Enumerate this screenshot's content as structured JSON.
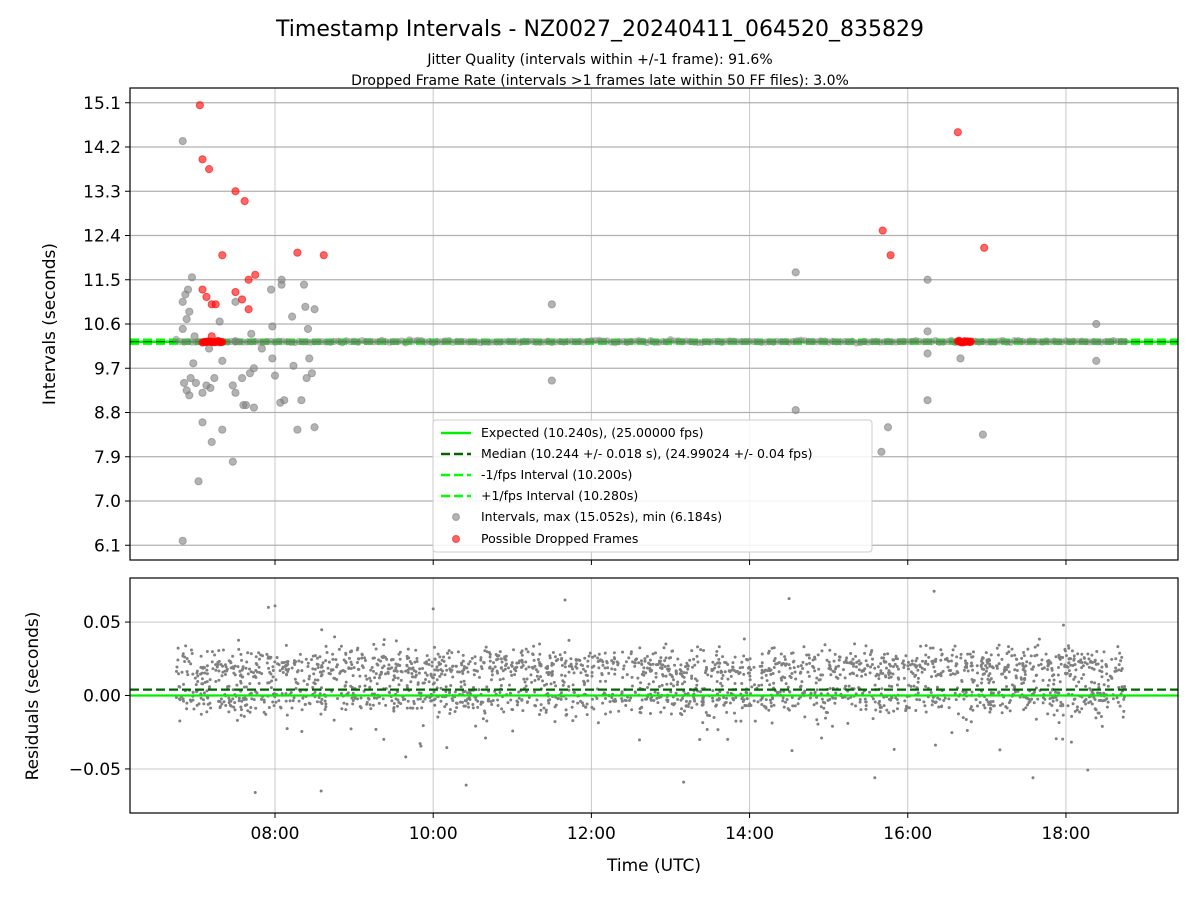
{
  "figure": {
    "title": "Timestamp Intervals - NZ0027_20240411_064520_835829",
    "subtitle_line1": "Jitter Quality (intervals within +/-1 frame): 91.6%",
    "subtitle_line2": "Dropped Frame Rate (intervals >1 frames late within 50 FF files): 3.0%"
  },
  "colors": {
    "expected": "#00ee00",
    "median": "#006400",
    "fps_band": "#00ff00",
    "intervals": "#808080",
    "dropped": "#ff0000",
    "residuals": "#808080",
    "grid": "#b0b0b0"
  },
  "chart_data": [
    {
      "type": "scatter",
      "ylabel": "Intervals (seconds)",
      "xlim": [
        "06:10",
        "19:25"
      ],
      "ylim": [
        5.8,
        15.4
      ],
      "xticks": [
        "08:00",
        "10:00",
        "12:00",
        "14:00",
        "16:00",
        "18:00"
      ],
      "yticks": [
        "6.1",
        "7.0",
        "7.9",
        "8.8",
        "9.7",
        "10.6",
        "11.5",
        "12.4",
        "13.3",
        "14.2",
        "15.1"
      ],
      "grid": true,
      "legend_position": "lower-center",
      "lines": [
        {
          "name": "Expected (10.240s), (25.00000 fps)",
          "y": 10.24,
          "style": "solid"
        },
        {
          "name": "Median (10.244 +/- 0.018 s), (24.99024 +/- 0.04 fps)",
          "y": 10.244,
          "style": "dashed"
        },
        {
          "name": "-1/fps Interval (10.200s)",
          "y": 10.2,
          "style": "dashed"
        },
        {
          "name": "+1/fps Interval (10.280s)",
          "y": 10.28,
          "style": "dashed"
        }
      ],
      "series": [
        {
          "name": "Intervals, max (15.052s), min (6.184s)",
          "points": [
            [
              "06:50",
              14.32
            ],
            [
              "06:50",
              11.05
            ],
            [
              "06:52",
              11.2
            ],
            [
              "06:54",
              11.3
            ],
            [
              "06:50",
              10.5
            ],
            [
              "06:53",
              10.7
            ],
            [
              "06:55",
              10.85
            ],
            [
              "06:57",
              11.55
            ],
            [
              "06:59",
              10.35
            ],
            [
              "06:51",
              9.4
            ],
            [
              "06:53",
              9.25
            ],
            [
              "06:55",
              9.15
            ],
            [
              "06:56",
              9.5
            ],
            [
              "06:58",
              9.8
            ],
            [
              "07:00",
              9.4
            ],
            [
              "07:02",
              7.4
            ],
            [
              "07:05",
              9.2
            ],
            [
              "07:05",
              8.6
            ],
            [
              "07:08",
              9.35
            ],
            [
              "07:10",
              10.1
            ],
            [
              "07:11",
              9.3
            ],
            [
              "07:14",
              9.5
            ],
            [
              "07:12",
              8.2
            ],
            [
              "07:18",
              10.65
            ],
            [
              "07:20",
              8.45
            ],
            [
              "07:20",
              9.85
            ],
            [
              "07:28",
              7.8
            ],
            [
              "07:28",
              9.35
            ],
            [
              "07:30",
              9.2
            ],
            [
              "07:30",
              10.25
            ],
            [
              "07:30",
              11.05
            ],
            [
              "07:35",
              9.5
            ],
            [
              "07:36",
              8.95
            ],
            [
              "07:38",
              8.95
            ],
            [
              "07:41",
              9.6
            ],
            [
              "07:42",
              10.4
            ],
            [
              "07:44",
              9.7
            ],
            [
              "07:44",
              8.9
            ],
            [
              "07:50",
              10.1
            ],
            [
              "07:57",
              11.3
            ],
            [
              "07:58",
              10.55
            ],
            [
              "07:58",
              9.9
            ],
            [
              "08:00",
              9.55
            ],
            [
              "08:05",
              11.5
            ],
            [
              "08:05",
              11.4
            ],
            [
              "08:04",
              9.0
            ],
            [
              "08:07",
              9.05
            ],
            [
              "08:13",
              10.75
            ],
            [
              "08:14",
              9.75
            ],
            [
              "08:17",
              8.45
            ],
            [
              "08:20",
              9.05
            ],
            [
              "08:22",
              11.4
            ],
            [
              "08:23",
              10.95
            ],
            [
              "08:25",
              10.5
            ],
            [
              "08:24",
              9.5
            ],
            [
              "08:26",
              9.9
            ],
            [
              "08:28",
              9.6
            ],
            [
              "08:30",
              10.9
            ],
            [
              "08:30",
              8.5
            ],
            [
              "06:50",
              6.19
            ],
            [
              "11:30",
              11.0
            ],
            [
              "11:30",
              9.45
            ],
            [
              "14:35",
              11.65
            ],
            [
              "14:35",
              8.85
            ],
            [
              "15:40",
              8.0
            ],
            [
              "15:45",
              8.5
            ],
            [
              "16:15",
              11.5
            ],
            [
              "16:15",
              10.45
            ],
            [
              "16:15",
              10.0
            ],
            [
              "16:15",
              9.05
            ],
            [
              "16:40",
              9.9
            ],
            [
              "16:57",
              8.35
            ],
            [
              "18:23",
              10.6
            ],
            [
              "18:23",
              9.85
            ]
          ]
        },
        {
          "name": "Possible Dropped Frames",
          "points": [
            [
              "07:03",
              15.05
            ],
            [
              "07:05",
              13.95
            ],
            [
              "07:10",
              13.75
            ],
            [
              "07:30",
              13.3
            ],
            [
              "07:37",
              13.1
            ],
            [
              "07:20",
              12.0
            ],
            [
              "07:05",
              11.3
            ],
            [
              "07:08",
              11.15
            ],
            [
              "07:12",
              11.0
            ],
            [
              "07:15",
              11.0
            ],
            [
              "07:30",
              11.25
            ],
            [
              "07:35",
              11.1
            ],
            [
              "07:40",
              10.9
            ],
            [
              "07:45",
              11.6
            ],
            [
              "07:40",
              11.5
            ],
            [
              "07:12",
              10.35
            ],
            [
              "08:17",
              12.05
            ],
            [
              "08:37",
              12.0
            ],
            [
              "15:41",
              12.5
            ],
            [
              "15:47",
              12.0
            ],
            [
              "16:38",
              14.5
            ],
            [
              "16:58",
              12.15
            ]
          ]
        }
      ]
    },
    {
      "type": "scatter",
      "xlabel": "Time (UTC)",
      "ylabel": "Residuals (seconds)",
      "xlim": [
        "06:10",
        "19:25"
      ],
      "ylim": [
        -0.08,
        0.08
      ],
      "xticks": [
        "08:00",
        "10:00",
        "12:00",
        "14:00",
        "16:00",
        "18:00"
      ],
      "yticks": [
        "0.05",
        "0.00",
        "−0.05"
      ],
      "grid": true,
      "lines": [
        {
          "name": "Expected",
          "y": 0.0,
          "style": "solid"
        },
        {
          "name": "Median",
          "y": 0.004,
          "style": "dashed"
        }
      ],
      "series": [
        {
          "name": "Residuals",
          "x_range": [
            "06:45",
            "18:45"
          ],
          "bands": [
            {
              "center": 0.02,
              "spread": 0.012,
              "share": 0.55
            },
            {
              "center": -0.002,
              "spread": 0.01,
              "share": 0.35
            },
            {
              "center": 0.0,
              "spread": 0.035,
              "share": 0.1
            }
          ],
          "count": 2400,
          "outliers": [
            [
              "07:45",
              -0.066
            ],
            [
              "08:35",
              -0.065
            ],
            [
              "10:25",
              -0.061
            ],
            [
              "13:10",
              -0.059
            ],
            [
              "15:35",
              -0.056
            ],
            [
              "17:35",
              -0.056
            ],
            [
              "08:00",
              0.061
            ],
            [
              "10:00",
              0.059
            ],
            [
              "11:40",
              0.065
            ],
            [
              "14:30",
              0.066
            ],
            [
              "16:20",
              0.071
            ],
            [
              "07:55",
              0.06
            ]
          ]
        }
      ]
    }
  ]
}
